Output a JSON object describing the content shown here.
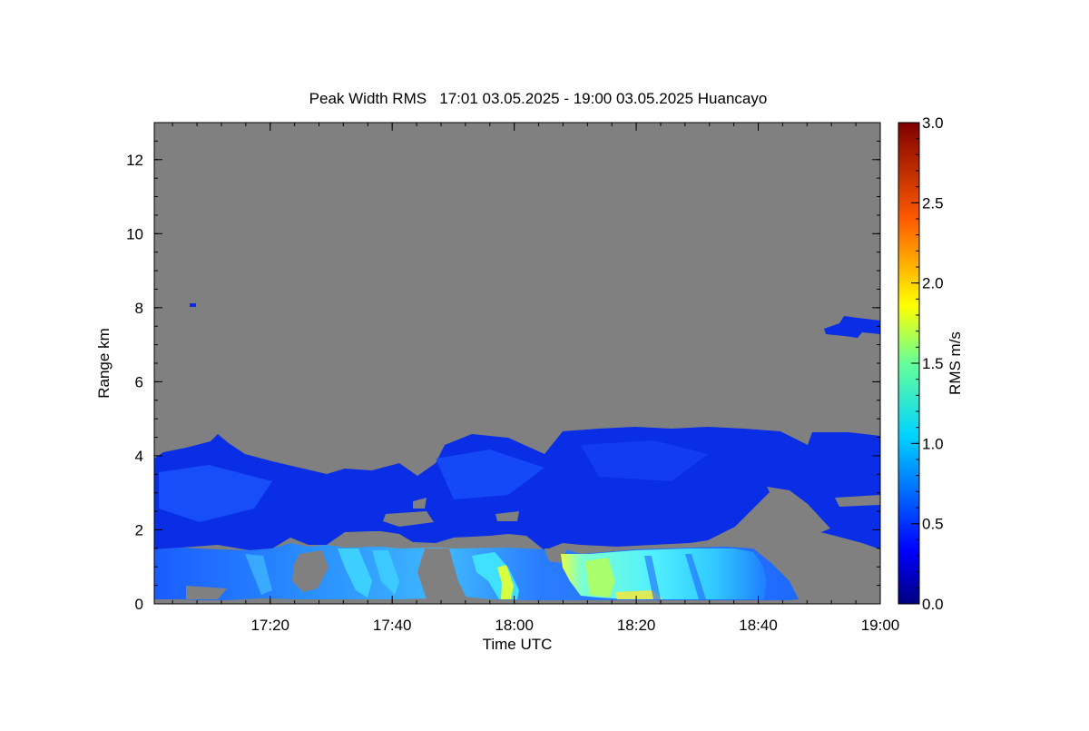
{
  "chart_data": {
    "type": "heatmap",
    "title": "Peak Width RMS   17:01 03.05.2025 - 19:00 03.05.2025 Huancayo",
    "xlabel": "Time UTC",
    "ylabel": "Range km",
    "colorbar_label": "RMS m/s",
    "xlim": [
      "17:01",
      "19:00"
    ],
    "ylim": [
      0,
      13
    ],
    "x_ticks": [
      {
        "value": "17:20",
        "label": "17:20"
      },
      {
        "value": "17:40",
        "label": "17:40"
      },
      {
        "value": "18:00",
        "label": "18:00"
      },
      {
        "value": "18:20",
        "label": "18:20"
      },
      {
        "value": "18:40",
        "label": "18:40"
      },
      {
        "value": "19:00",
        "label": "19:00"
      }
    ],
    "y_ticks": [
      {
        "value": 0,
        "label": "0"
      },
      {
        "value": 2,
        "label": "2"
      },
      {
        "value": 4,
        "label": "4"
      },
      {
        "value": 6,
        "label": "6"
      },
      {
        "value": 8,
        "label": "8"
      },
      {
        "value": 10,
        "label": "10"
      },
      {
        "value": 12,
        "label": "12"
      }
    ],
    "colorbar": {
      "range": [
        0,
        3
      ],
      "colormap": "jet",
      "ticks": [
        {
          "value": 0,
          "label": "0.0"
        },
        {
          "value": 0.5,
          "label": "0.5"
        },
        {
          "value": 1.0,
          "label": "1.0"
        },
        {
          "value": 1.5,
          "label": "1.5"
        },
        {
          "value": 2.0,
          "label": "2.0"
        },
        {
          "value": 2.5,
          "label": "2.5"
        },
        {
          "value": 3.0,
          "label": "3.0"
        }
      ]
    },
    "no_data_color": "#808080",
    "regions": [
      {
        "name": "low-layer",
        "t_start": "17:01",
        "t_end": "18:46",
        "range_km": [
          0.1,
          1.5
        ],
        "rms_m_s": 0.7
      },
      {
        "name": "mid-layer",
        "t_start": "17:01",
        "t_end": "19:00",
        "range_km": [
          1.5,
          4.5
        ],
        "rms_m_s": 0.3
      },
      {
        "name": "strong-band",
        "t_start": "18:08",
        "t_end": "18:42",
        "range_km": [
          0.1,
          1.4
        ],
        "rms_m_s": 1.1
      },
      {
        "name": "upper-patch",
        "t_start": "18:52",
        "t_end": "19:00",
        "range_km": [
          7.2,
          7.8
        ],
        "rms_m_s": 0.3
      }
    ]
  }
}
